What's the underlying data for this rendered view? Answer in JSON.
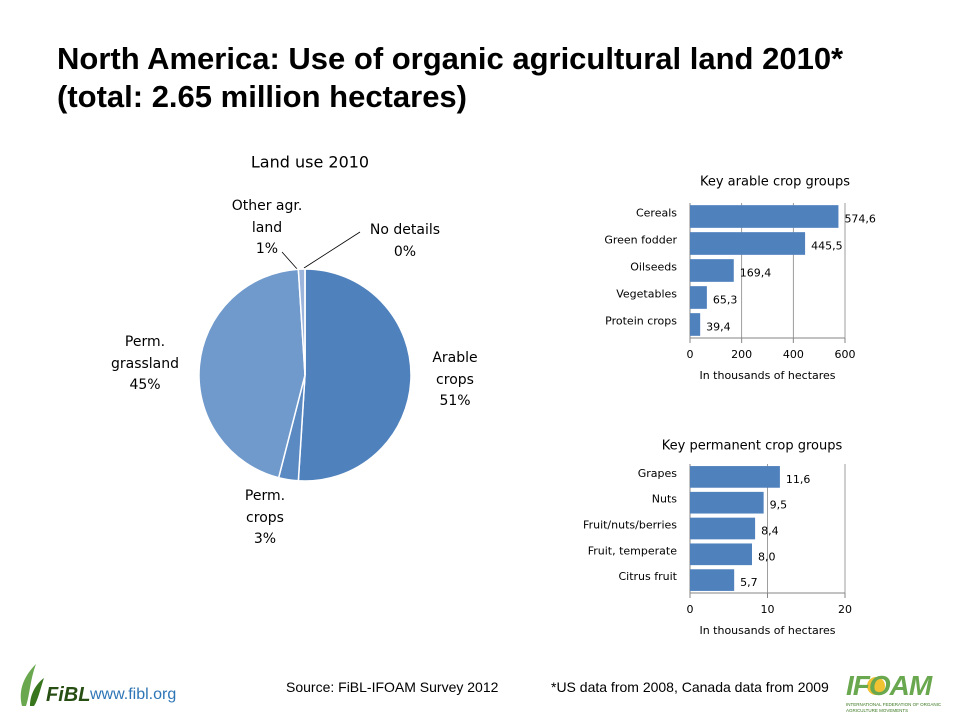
{
  "title": "North America: Use of organic agricultural land 2010* (total: 2.65 million hectares)",
  "chart_data": [
    {
      "type": "pie",
      "title": "Land use 2010",
      "categories": [
        "Arable crops",
        "Perm. crops",
        "Perm. grassland",
        "Other agr. land",
        "No details"
      ],
      "values": [
        51,
        3,
        45,
        1,
        0
      ],
      "value_labels": [
        "51%",
        "3%",
        "45%",
        "1%",
        "0%"
      ],
      "colors": [
        "#4f81bd",
        "#5b8ac3",
        "#7099cc",
        "#9bb5dc",
        "#b7c9e6"
      ]
    },
    {
      "type": "bar",
      "orientation": "horizontal",
      "title": "Key arable crop groups",
      "categories": [
        "Cereals",
        "Green fodder",
        "Oilseeds",
        "Vegetables",
        "Protein crops"
      ],
      "values": [
        574.6,
        445.5,
        169.4,
        65.3,
        39.4
      ],
      "value_labels": [
        "574,6",
        "445,5",
        "169,4",
        "65,3",
        "39,4"
      ],
      "color": "#4f81bd",
      "xlim": [
        0,
        600
      ],
      "xticks": [
        0,
        200,
        400,
        600
      ],
      "xlabel": "In thousands of hectares",
      "grid": true
    },
    {
      "type": "bar",
      "orientation": "horizontal",
      "title": "Key permanent crop groups",
      "categories": [
        "Grapes",
        "Nuts",
        "Fruit/nuts/berries",
        "Fruit, temperate",
        "Citrus fruit"
      ],
      "values": [
        11.6,
        9.5,
        8.4,
        8.0,
        5.7
      ],
      "value_labels": [
        "11,6",
        "9,5",
        "8,4",
        "8,0",
        "5,7"
      ],
      "color": "#4f81bd",
      "xlim": [
        0,
        20
      ],
      "xticks": [
        0,
        10,
        20
      ],
      "xlabel": "In thousands of hectares",
      "grid": true
    }
  ],
  "source": "Source: FiBL-IFOAM Survey 2012",
  "footnote": "*US data from 2008, Canada data from 2009",
  "fibl_logo": "FiBL",
  "fibl_url": "www.fibl.org",
  "ifoam_logo": "IFOAM",
  "ifoam_subtitle": "INTERNATIONAL FEDERATION OF ORGANIC AGRICULTURE MOVEMENTS"
}
